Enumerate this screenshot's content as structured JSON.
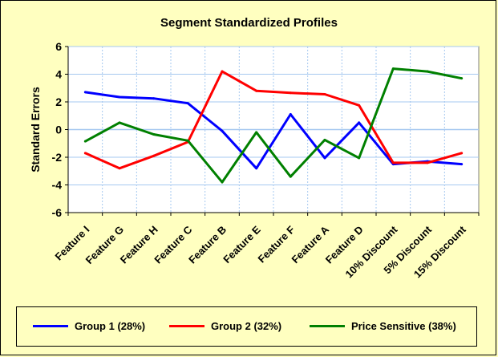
{
  "chart_data": {
    "type": "line",
    "title": "Segment Standardized Profiles",
    "xlabel": "",
    "ylabel": "Standard Errors",
    "ylim": [
      -6,
      6
    ],
    "yticks": [
      "6",
      "4",
      "2",
      "0",
      "-2",
      "-4",
      "-6"
    ],
    "categories": [
      "Feature I",
      "Feature G",
      "Feature H",
      "Feature C",
      "Feature B",
      "Feature E",
      "Feature F",
      "Feature A",
      "Feature D",
      "10% Discount",
      "5% Discount",
      "15% Discount"
    ],
    "grid": true,
    "legend_position": "bottom",
    "series": [
      {
        "name": "Group 1 (28%)",
        "color": "#0000ff",
        "values": [
          2.7,
          2.35,
          2.25,
          1.9,
          -0.1,
          -2.8,
          1.1,
          -2.05,
          0.5,
          -2.5,
          -2.3,
          -2.5
        ]
      },
      {
        "name": "Group 2 (32%)",
        "color": "#ff0000",
        "values": [
          -1.7,
          -2.8,
          -1.9,
          -0.9,
          4.2,
          2.8,
          2.65,
          2.55,
          1.75,
          -2.4,
          -2.4,
          -1.7
        ]
      },
      {
        "name": "Price Sensitive (38%)",
        "color": "#008000",
        "values": [
          -0.85,
          0.5,
          -0.35,
          -0.8,
          -3.8,
          -0.2,
          -3.4,
          -0.75,
          -2.05,
          4.4,
          4.2,
          3.7
        ]
      }
    ]
  },
  "colors": {
    "background": "#ffffc0",
    "plot_area": "#ffffff",
    "gridline": "#a6c8f0",
    "zero_line": "#a6c8f0"
  }
}
